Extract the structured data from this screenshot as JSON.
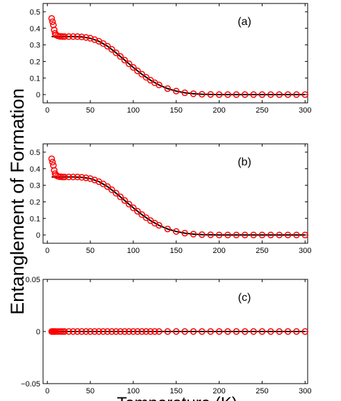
{
  "chart_data": [
    {
      "type": "line",
      "panel_label": "(a)",
      "xlim": [
        -5,
        303
      ],
      "xticks": [
        0,
        50,
        100,
        150,
        200,
        250,
        300
      ],
      "ylim": [
        -0.05,
        0.55
      ],
      "yticks": [
        0,
        0.1,
        0.2,
        0.3,
        0.4,
        0.5
      ],
      "series": [
        {
          "style": "line",
          "color": "#000000",
          "x": [
            5,
            10,
            20,
            30,
            40,
            50,
            60,
            70,
            80,
            90,
            100,
            110,
            120,
            130,
            140,
            150,
            160,
            170,
            180,
            190,
            200,
            250,
            300
          ],
          "values": [
            0.35,
            0.35,
            0.35,
            0.35,
            0.348,
            0.34,
            0.322,
            0.292,
            0.252,
            0.208,
            0.164,
            0.123,
            0.087,
            0.058,
            0.036,
            0.021,
            0.011,
            0.005,
            0.002,
            0.001,
            0,
            0,
            0
          ]
        },
        {
          "style": "marker",
          "color": "#ff0000",
          "x": [
            5,
            6,
            7,
            8,
            9,
            10,
            12,
            14,
            16,
            18,
            20,
            25,
            30,
            35,
            40,
            45,
            50,
            55,
            60,
            65,
            70,
            75,
            80,
            85,
            90,
            95,
            100,
            105,
            110,
            115,
            120,
            125,
            130,
            140,
            150,
            160,
            170,
            180,
            190,
            200,
            210,
            220,
            230,
            240,
            250,
            260,
            270,
            280,
            290,
            300
          ],
          "values": [
            0.46,
            0.44,
            0.42,
            0.39,
            0.37,
            0.36,
            0.355,
            0.352,
            0.351,
            0.35,
            0.35,
            0.35,
            0.35,
            0.35,
            0.348,
            0.345,
            0.34,
            0.332,
            0.322,
            0.308,
            0.292,
            0.273,
            0.252,
            0.23,
            0.208,
            0.186,
            0.164,
            0.143,
            0.123,
            0.104,
            0.087,
            0.071,
            0.058,
            0.036,
            0.021,
            0.011,
            0.005,
            0.002,
            0.001,
            0,
            0,
            0,
            0,
            0,
            0,
            0,
            0,
            0,
            0,
            0
          ]
        }
      ]
    },
    {
      "type": "line",
      "panel_label": "(b)",
      "ylabel": "Entanglement of Formation",
      "xlim": [
        -5,
        303
      ],
      "xticks": [
        0,
        50,
        100,
        150,
        200,
        250,
        300
      ],
      "ylim": [
        -0.05,
        0.55
      ],
      "yticks": [
        0,
        0.1,
        0.2,
        0.3,
        0.4,
        0.5
      ],
      "series": [
        {
          "style": "line",
          "color": "#000000",
          "x": [
            5,
            10,
            20,
            30,
            40,
            50,
            60,
            70,
            80,
            90,
            100,
            110,
            120,
            130,
            140,
            150,
            160,
            170,
            180,
            190,
            200,
            250,
            300
          ],
          "values": [
            0.35,
            0.35,
            0.35,
            0.35,
            0.348,
            0.34,
            0.322,
            0.292,
            0.252,
            0.208,
            0.164,
            0.123,
            0.087,
            0.058,
            0.036,
            0.021,
            0.011,
            0.005,
            0.002,
            0.001,
            0,
            0,
            0
          ]
        },
        {
          "style": "marker",
          "color": "#ff0000",
          "x": [
            5,
            6,
            7,
            8,
            9,
            10,
            12,
            14,
            16,
            18,
            20,
            25,
            30,
            35,
            40,
            45,
            50,
            55,
            60,
            65,
            70,
            75,
            80,
            85,
            90,
            95,
            100,
            105,
            110,
            115,
            120,
            125,
            130,
            140,
            150,
            160,
            170,
            180,
            190,
            200,
            210,
            220,
            230,
            240,
            250,
            260,
            270,
            280,
            290,
            300
          ],
          "values": [
            0.46,
            0.44,
            0.42,
            0.39,
            0.37,
            0.36,
            0.355,
            0.352,
            0.351,
            0.35,
            0.35,
            0.35,
            0.35,
            0.35,
            0.348,
            0.345,
            0.34,
            0.332,
            0.322,
            0.308,
            0.292,
            0.273,
            0.252,
            0.23,
            0.208,
            0.186,
            0.164,
            0.143,
            0.123,
            0.104,
            0.087,
            0.071,
            0.058,
            0.036,
            0.021,
            0.011,
            0.005,
            0.002,
            0.001,
            0,
            0,
            0,
            0,
            0,
            0,
            0,
            0,
            0,
            0,
            0
          ]
        }
      ]
    },
    {
      "type": "line",
      "panel_label": "(c)",
      "xlabel": "Temperature (K)",
      "xlim": [
        -5,
        303
      ],
      "xticks": [
        0,
        50,
        100,
        150,
        200,
        250,
        300
      ],
      "ylim": [
        -0.05,
        0.05
      ],
      "yticks": [
        {
          "value": -0.05,
          "label": "−0.05"
        },
        0,
        0.05
      ],
      "series": [
        {
          "style": "line",
          "color": "#000000",
          "x": [
            5,
            300
          ],
          "values": [
            0,
            0
          ]
        },
        {
          "style": "marker",
          "color": "#ff0000",
          "x": [
            5,
            6,
            7,
            8,
            9,
            10,
            12,
            14,
            16,
            18,
            20,
            25,
            30,
            35,
            40,
            45,
            50,
            55,
            60,
            65,
            70,
            75,
            80,
            85,
            90,
            95,
            100,
            105,
            110,
            115,
            120,
            125,
            130,
            140,
            150,
            160,
            170,
            180,
            190,
            200,
            210,
            220,
            230,
            240,
            250,
            260,
            270,
            280,
            290,
            300
          ],
          "values": [
            0,
            0,
            0,
            0,
            0,
            0,
            0,
            0,
            0,
            0,
            0,
            0,
            0,
            0,
            0,
            0,
            0,
            0,
            0,
            0,
            0,
            0,
            0,
            0,
            0,
            0,
            0,
            0,
            0,
            0,
            0,
            0,
            0,
            0,
            0,
            0,
            0,
            0,
            0,
            0,
            0,
            0,
            0,
            0,
            0,
            0,
            0,
            0,
            0,
            0
          ]
        }
      ]
    }
  ]
}
